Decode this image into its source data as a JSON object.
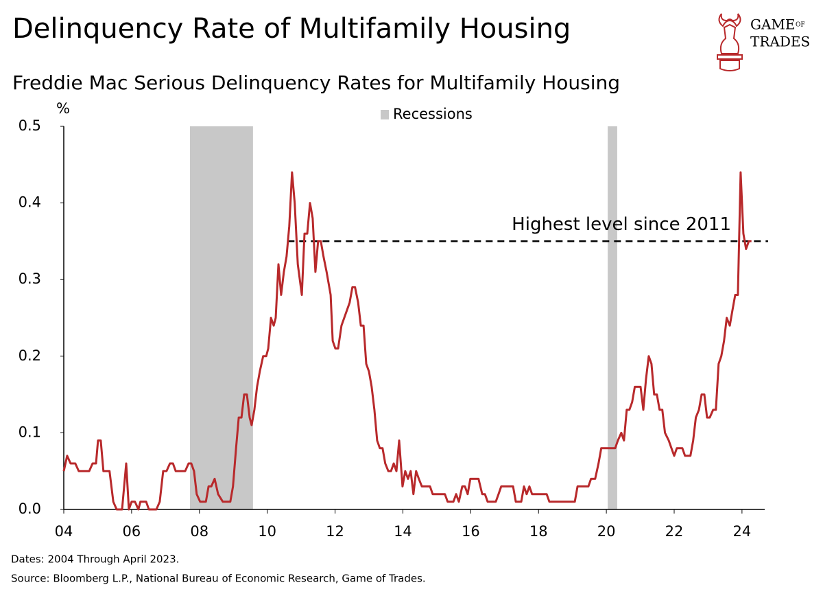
{
  "logo": {
    "line1": "GAME",
    "small": "OF",
    "line2": "TRADES"
  },
  "chart_data": {
    "type": "line",
    "title": "Delinquency Rate of Multifamily Housing",
    "subtitle": "Freddie Mac Serious Delinquency Rates for Multifamily Housing",
    "y_label": "%",
    "footnotes": [
      "Dates: 2004 Through April 2023.",
      "Source: Bloomberg L.P., National Bureau of Economic Research, Game of Trades."
    ],
    "annotation": "Highest level since 2011",
    "reference_line": {
      "value": 0.35,
      "x": [
        2010.6,
        2024.77
      ],
      "color": "#000000"
    },
    "recession_color": "#c8c8c8",
    "recessions": [
      {
        "start": 2007.72,
        "end": 2009.58
      },
      {
        "start": 2020.04,
        "end": 2020.32
      }
    ],
    "legend": {
      "name": "Recessions",
      "position": "top"
    },
    "xlim": [
      2004,
      2024.67
    ],
    "xticks": [
      {
        "value": 2004,
        "label": "04"
      },
      {
        "value": 2006,
        "label": "06"
      },
      {
        "value": 2008,
        "label": "08"
      },
      {
        "value": 2010,
        "label": "10"
      },
      {
        "value": 2012,
        "label": "12"
      },
      {
        "value": 2014,
        "label": "14"
      },
      {
        "value": 2016,
        "label": "16"
      },
      {
        "value": 2018,
        "label": "18"
      },
      {
        "value": 2020,
        "label": "20"
      },
      {
        "value": 2022,
        "label": "22"
      },
      {
        "value": 2024,
        "label": "24"
      }
    ],
    "ylim": [
      0,
      0.5
    ],
    "yticks": [
      {
        "value": 0,
        "label": "0.0"
      },
      0.1,
      0.2,
      0.3,
      0.4,
      0.5
    ],
    "grid": false,
    "x": [
      2004.0,
      2004.1,
      2004.2,
      2004.34,
      2004.44,
      2004.75,
      2004.85,
      2004.95,
      2005.01,
      2005.09,
      2005.17,
      2005.35,
      2005.46,
      2005.56,
      2005.72,
      2005.84,
      2005.92,
      2006.0,
      2006.1,
      2006.2,
      2006.26,
      2006.43,
      2006.51,
      2006.73,
      2006.83,
      2006.93,
      2007.03,
      2007.13,
      2007.22,
      2007.3,
      2007.58,
      2007.68,
      2007.76,
      2007.84,
      2007.92,
      2008.02,
      2008.19,
      2008.27,
      2008.35,
      2008.45,
      2008.55,
      2008.69,
      2008.91,
      2008.99,
      2009.08,
      2009.16,
      2009.24,
      2009.32,
      2009.4,
      2009.48,
      2009.54,
      2009.62,
      2009.7,
      2009.78,
      2009.88,
      2009.97,
      2010.03,
      2010.11,
      2010.19,
      2010.25,
      2010.33,
      2010.41,
      2010.49,
      2010.57,
      2010.65,
      2010.73,
      2010.81,
      2010.9,
      2011.02,
      2011.1,
      2011.18,
      2011.26,
      2011.34,
      2011.42,
      2011.5,
      2011.58,
      2011.66,
      2011.75,
      2011.87,
      2011.93,
      2012.01,
      2012.09,
      2012.19,
      2012.27,
      2012.35,
      2012.43,
      2012.51,
      2012.59,
      2012.68,
      2012.76,
      2012.84,
      2012.92,
      2013.0,
      2013.08,
      2013.16,
      2013.24,
      2013.32,
      2013.4,
      2013.48,
      2013.57,
      2013.65,
      2013.73,
      2013.81,
      2013.89,
      2013.99,
      2014.07,
      2014.15,
      2014.23,
      2014.31,
      2014.39,
      2014.47,
      2014.56,
      2014.64,
      2014.72,
      2014.8,
      2014.88,
      2015.06,
      2015.16,
      2015.24,
      2015.32,
      2015.49,
      2015.57,
      2015.65,
      2015.75,
      2015.83,
      2015.91,
      2015.99,
      2016.15,
      2016.23,
      2016.34,
      2016.42,
      2016.5,
      2016.74,
      2016.82,
      2016.9,
      2017.25,
      2017.33,
      2017.49,
      2017.57,
      2017.65,
      2017.73,
      2017.81,
      2017.89,
      2018.24,
      2018.32,
      2019.07,
      2019.15,
      2019.47,
      2019.55,
      2019.67,
      2019.77,
      2019.85,
      2020.26,
      2020.34,
      2020.44,
      2020.52,
      2020.6,
      2020.68,
      2020.76,
      2020.84,
      2021.01,
      2021.09,
      2021.17,
      2021.25,
      2021.33,
      2021.41,
      2021.49,
      2021.57,
      2021.65,
      2021.73,
      2021.84,
      2021.92,
      2022.0,
      2022.08,
      2022.24,
      2022.32,
      2022.48,
      2022.56,
      2022.64,
      2022.73,
      2022.81,
      2022.89,
      2022.97,
      2023.05,
      2023.15,
      2023.23,
      2023.31,
      2023.39,
      2023.47,
      2023.55,
      2023.64,
      2023.72,
      2023.8,
      2023.88,
      2023.96,
      2024.04,
      2024.12,
      2024.2,
      2024.28
    ],
    "series": [
      {
        "color": "#b8292b",
        "values": [
          0.05,
          0.07,
          0.06,
          0.06,
          0.05,
          0.05,
          0.06,
          0.06,
          0.09,
          0.09,
          0.05,
          0.05,
          0.01,
          0.0,
          0.0,
          0.06,
          0.0,
          0.01,
          0.01,
          0.0,
          0.01,
          0.01,
          0.0,
          0.0,
          0.01,
          0.05,
          0.05,
          0.06,
          0.06,
          0.05,
          0.05,
          0.06,
          0.06,
          0.05,
          0.02,
          0.01,
          0.01,
          0.03,
          0.03,
          0.04,
          0.02,
          0.01,
          0.01,
          0.03,
          0.08,
          0.12,
          0.12,
          0.15,
          0.15,
          0.12,
          0.11,
          0.13,
          0.16,
          0.18,
          0.2,
          0.2,
          0.21,
          0.25,
          0.24,
          0.25,
          0.32,
          0.28,
          0.31,
          0.33,
          0.37,
          0.44,
          0.4,
          0.32,
          0.28,
          0.36,
          0.36,
          0.4,
          0.38,
          0.31,
          0.35,
          0.35,
          0.33,
          0.31,
          0.28,
          0.22,
          0.21,
          0.21,
          0.24,
          0.25,
          0.26,
          0.27,
          0.29,
          0.29,
          0.27,
          0.24,
          0.24,
          0.19,
          0.18,
          0.16,
          0.13,
          0.09,
          0.08,
          0.08,
          0.06,
          0.05,
          0.05,
          0.06,
          0.05,
          0.09,
          0.03,
          0.05,
          0.04,
          0.05,
          0.02,
          0.05,
          0.04,
          0.03,
          0.03,
          0.03,
          0.03,
          0.02,
          0.02,
          0.02,
          0.02,
          0.01,
          0.01,
          0.02,
          0.01,
          0.03,
          0.03,
          0.02,
          0.04,
          0.04,
          0.04,
          0.02,
          0.02,
          0.01,
          0.01,
          0.02,
          0.03,
          0.03,
          0.01,
          0.01,
          0.03,
          0.02,
          0.03,
          0.02,
          0.02,
          0.02,
          0.01,
          0.01,
          0.03,
          0.03,
          0.04,
          0.04,
          0.06,
          0.08,
          0.08,
          0.09,
          0.1,
          0.09,
          0.13,
          0.13,
          0.14,
          0.16,
          0.16,
          0.13,
          0.17,
          0.2,
          0.19,
          0.15,
          0.15,
          0.13,
          0.13,
          0.1,
          0.09,
          0.08,
          0.07,
          0.08,
          0.08,
          0.07,
          0.07,
          0.09,
          0.12,
          0.13,
          0.15,
          0.15,
          0.12,
          0.12,
          0.13,
          0.13,
          0.19,
          0.2,
          0.22,
          0.25,
          0.24,
          0.26,
          0.28,
          0.28,
          0.44,
          0.36,
          0.34,
          0.35,
          0.35
        ]
      }
    ]
  }
}
